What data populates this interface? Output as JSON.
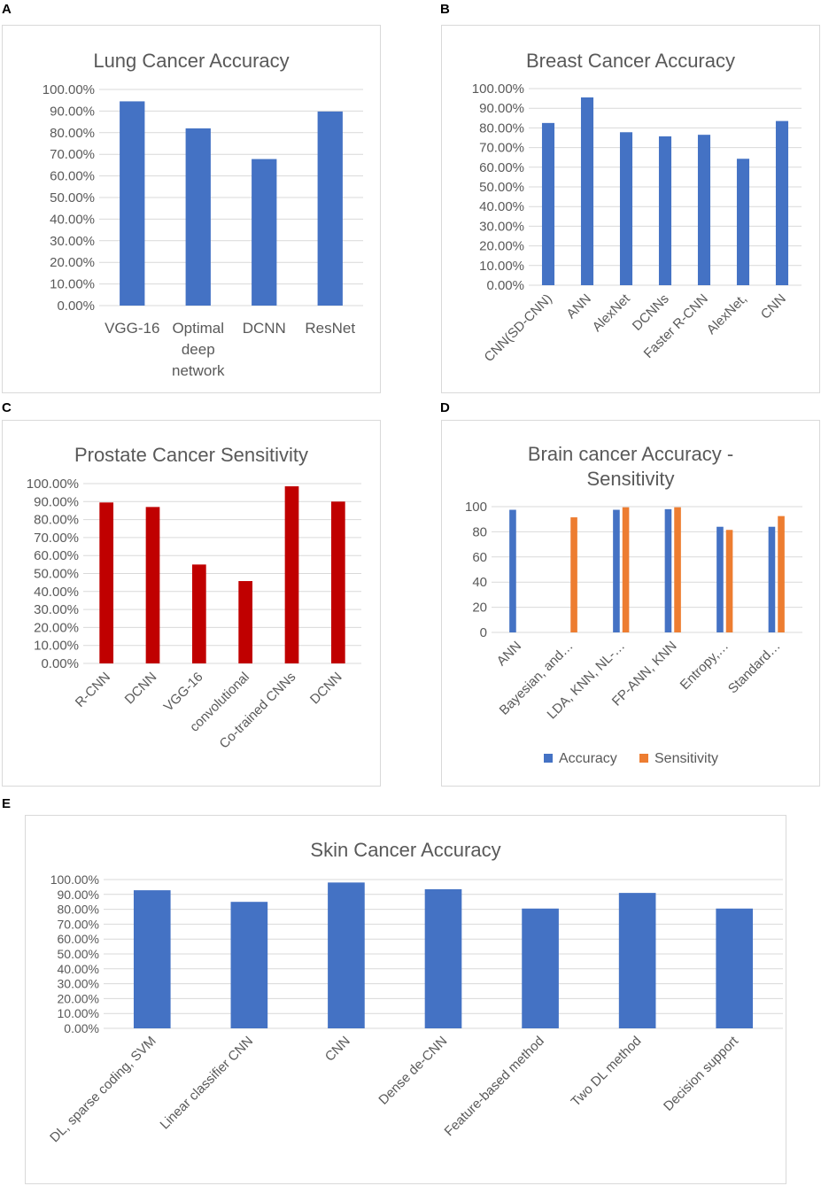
{
  "colors": {
    "blue": "#4472C4",
    "red": "#C00000",
    "orange": "#ED7D31",
    "grid": "#d9d9d9",
    "text": "#595959"
  },
  "panel_letters": {
    "a": "A",
    "b": "B",
    "c": "C",
    "d": "D",
    "e": "E"
  },
  "chart_data": [
    {
      "id": "A",
      "type": "bar",
      "title": "Lung Cancer Accuracy",
      "categories": [
        "VGG-16",
        "Optimal deep network",
        "DCNN",
        "ResNet"
      ],
      "category_lines": [
        [
          "VGG-16"
        ],
        [
          "Optimal",
          "deep",
          "network"
        ],
        [
          "DCNN"
        ],
        [
          "ResNet"
        ]
      ],
      "series": [
        {
          "name": "Accuracy",
          "values": [
            94.5,
            82.0,
            67.8,
            89.8
          ]
        }
      ],
      "ylim": [
        0,
        100
      ],
      "ystep": 10,
      "yformat": "pct",
      "yticks": [
        "0.00%",
        "10.00%",
        "20.00%",
        "30.00%",
        "40.00%",
        "50.00%",
        "60.00%",
        "70.00%",
        "80.00%",
        "90.00%",
        "100.00%"
      ],
      "legend": []
    },
    {
      "id": "B",
      "type": "bar",
      "title": "Breast Cancer Accuracy",
      "categories": [
        "CNN(SD-CNN)",
        "ANN",
        "AlexNet",
        "DCNNs",
        "Faster R-CNN",
        "AlexNet,",
        "CNN"
      ],
      "series": [
        {
          "name": "Accuracy",
          "values": [
            82.5,
            95.5,
            77.8,
            75.7,
            76.5,
            64.3,
            83.5
          ]
        }
      ],
      "ylim": [
        0,
        100
      ],
      "ystep": 10,
      "yformat": "pct",
      "yticks": [
        "0.00%",
        "10.00%",
        "20.00%",
        "30.00%",
        "40.00%",
        "50.00%",
        "60.00%",
        "70.00%",
        "80.00%",
        "90.00%",
        "100.00%"
      ],
      "legend": []
    },
    {
      "id": "C",
      "type": "bar",
      "title": "Prostate Cancer Sensitivity",
      "categories": [
        "R-CNN",
        "DCNN",
        "VGG-16",
        "convolutional",
        "Co-trained CNNs",
        "DCNN"
      ],
      "series": [
        {
          "name": "Sensitivity",
          "values": [
            89.5,
            87.0,
            55.0,
            45.8,
            98.5,
            90.0
          ]
        }
      ],
      "ylim": [
        0,
        100
      ],
      "ystep": 10,
      "yformat": "pct",
      "yticks": [
        "0.00%",
        "10.00%",
        "20.00%",
        "30.00%",
        "40.00%",
        "50.00%",
        "60.00%",
        "70.00%",
        "80.00%",
        "90.00%",
        "100.00%"
      ],
      "legend": []
    },
    {
      "id": "D",
      "type": "bar",
      "title": "Brain cancer Accuracy - Sensitivity",
      "title_lines": [
        "Brain cancer Accuracy -",
        "Sensitivity"
      ],
      "categories": [
        "ANN",
        "Bayesian, and…",
        "LDA, KNN, NL-…",
        "FP-ANN, KNN",
        "Entropy,…",
        "Standard…"
      ],
      "series": [
        {
          "name": "Accuracy",
          "values": [
            97.5,
            null,
            97.5,
            98.0,
            84.0,
            84.0
          ]
        },
        {
          "name": "Sensitivity",
          "values": [
            null,
            91.5,
            99.5,
            99.5,
            81.5,
            92.5
          ]
        }
      ],
      "ylim": [
        0,
        100
      ],
      "ystep": 20,
      "yformat": "int",
      "yticks": [
        "0",
        "20",
        "40",
        "60",
        "80",
        "100"
      ],
      "legend": [
        "Accuracy",
        "Sensitivity"
      ]
    },
    {
      "id": "E",
      "type": "bar",
      "title": "Skin Cancer Accuracy",
      "categories": [
        "DL, sparse coding, SVM",
        "Linear classifier CNN",
        "CNN",
        "Dense de-CNN",
        "Feature-based method",
        "Two DL method",
        "Decision support"
      ],
      "series": [
        {
          "name": "Accuracy",
          "values": [
            92.8,
            85.0,
            98.0,
            93.5,
            80.5,
            91.0,
            80.5
          ]
        }
      ],
      "ylim": [
        0,
        100
      ],
      "ystep": 10,
      "yformat": "pct",
      "yticks": [
        "0.00%",
        "10.00%",
        "20.00%",
        "30.00%",
        "40.00%",
        "50.00%",
        "60.00%",
        "70.00%",
        "80.00%",
        "90.00%",
        "100.00%"
      ],
      "legend": []
    }
  ]
}
